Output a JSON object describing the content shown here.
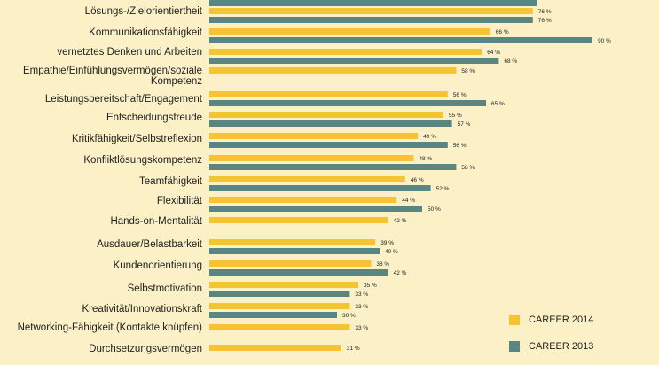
{
  "chart_data": {
    "type": "bar",
    "orientation": "horizontal",
    "categories": [
      "",
      "Lösungs-/Zielorientiertheit",
      "Kommunikationsfähigkeit",
      "vernetztes Denken und Arbeiten",
      "Empathie/Einfühlungsvermögen/soziale Kompetenz",
      "Leistungsbereitschaft/Engagement",
      "Entscheidungsfreude",
      "Kritikfähigkeit/Selbstreflexion",
      "Konfliktlösungskompetenz",
      "Teamfähigkeit",
      "Flexibilität",
      "Hands-on-Mentalität",
      "Ausdauer/Belastbarkeit",
      "Kundenorientierung",
      "Selbstmotivation",
      "Kreativität/Innovationskraft",
      "Networking-Fähigkeit (Kontakte knüpfen)",
      "Durchsetzungsvermögen"
    ],
    "series": [
      {
        "name": "CAREER 2014",
        "color": "#f6c332",
        "values": [
          null,
          76,
          66,
          64,
          58,
          56,
          55,
          49,
          48,
          46,
          44,
          42,
          39,
          38,
          35,
          33,
          33,
          31
        ],
        "labels": [
          "",
          "76 %",
          "66 %",
          "64 %",
          "58 %",
          "56 %",
          "55 %",
          "49 %",
          "48 %",
          "46 %",
          "44 %",
          "42 %",
          "39 %",
          "38 %",
          "35 %",
          "33 %",
          "33 %",
          "31 %"
        ]
      },
      {
        "name": "CAREER 2013",
        "color": "#5b8580",
        "values": [
          77,
          76,
          90,
          68,
          null,
          65,
          57,
          56,
          58,
          52,
          50,
          null,
          40,
          42,
          33,
          30,
          null,
          null
        ],
        "labels": [
          "",
          "76 %",
          "90 %",
          "68 %",
          "",
          "65 %",
          "57 %",
          "56 %",
          "58 %",
          "52 %",
          "50 %",
          "",
          "40 %",
          "42 %",
          "33 %",
          "30 %",
          "",
          ""
        ]
      }
    ],
    "xlim": [
      0,
      100
    ],
    "grid": false,
    "legend_position": "bottom-right"
  }
}
